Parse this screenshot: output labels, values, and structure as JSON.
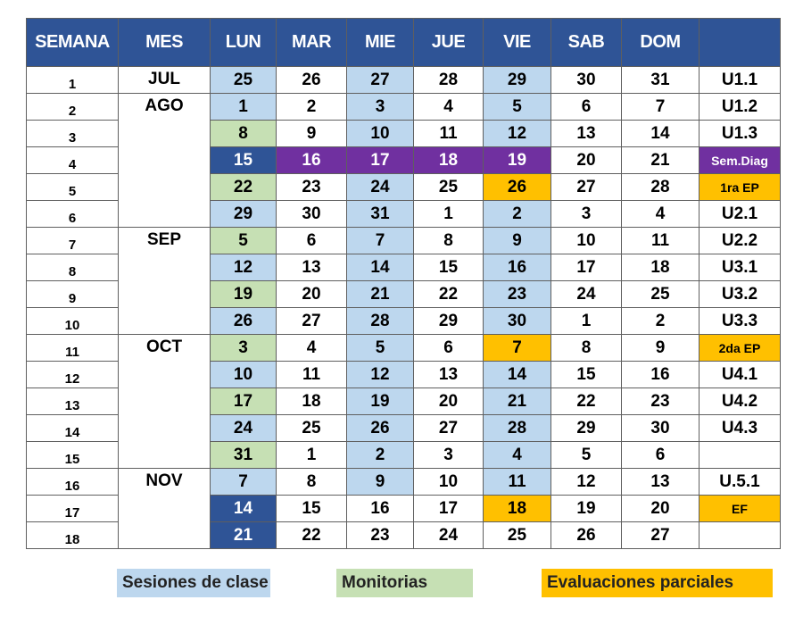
{
  "headers": [
    "SEMANA",
    "MES",
    "LUN",
    "MAR",
    "MIE",
    "JUE",
    "VIE",
    "SAB",
    "DOM",
    ""
  ],
  "colors": {
    "header": "#2f5496",
    "clase": "#bdd7ee",
    "monitoria": "#c6e0b4",
    "dark": "#2f5496",
    "purple": "#7030a0",
    "evaluacion": "#ffc000"
  },
  "months": [
    {
      "label": "JUL",
      "start": 0,
      "span": 1
    },
    {
      "label": "AGO",
      "start": 1,
      "span": 5
    },
    {
      "label": "SEP",
      "start": 6,
      "span": 4
    },
    {
      "label": "OCT",
      "start": 10,
      "span": 5
    },
    {
      "label": "NOV",
      "start": 15,
      "span": 3
    }
  ],
  "rows": [
    {
      "week": "1",
      "days": [
        "25",
        "26",
        "27",
        "28",
        "29",
        "30",
        "31"
      ],
      "styles": [
        "blue",
        "",
        "blue",
        "",
        "blue",
        "",
        ""
      ],
      "unit": "U1.1",
      "unit_style": ""
    },
    {
      "week": "2",
      "days": [
        "1",
        "2",
        "3",
        "4",
        "5",
        "6",
        "7"
      ],
      "styles": [
        "blue",
        "",
        "blue",
        "",
        "blue",
        "",
        ""
      ],
      "unit": "U1.2",
      "unit_style": ""
    },
    {
      "week": "3",
      "days": [
        "8",
        "9",
        "10",
        "11",
        "12",
        "13",
        "14"
      ],
      "styles": [
        "green",
        "",
        "blue",
        "",
        "blue",
        "",
        ""
      ],
      "unit": "U1.3",
      "unit_style": ""
    },
    {
      "week": "4",
      "days": [
        "15",
        "16",
        "17",
        "18",
        "19",
        "20",
        "21"
      ],
      "styles": [
        "dark",
        "purple",
        "purple",
        "purple",
        "purple",
        "",
        ""
      ],
      "unit": "Sem.Diag",
      "unit_style": "purple small"
    },
    {
      "week": "5",
      "days": [
        "22",
        "23",
        "24",
        "25",
        "26",
        "27",
        "28"
      ],
      "styles": [
        "green",
        "",
        "blue",
        "",
        "orange",
        "",
        ""
      ],
      "unit": "1ra EP",
      "unit_style": "orange small"
    },
    {
      "week": "6",
      "days": [
        "29",
        "30",
        "31",
        "1",
        "2",
        "3",
        "4"
      ],
      "styles": [
        "blue",
        "",
        "blue",
        "",
        "blue",
        "",
        ""
      ],
      "unit": "U2.1",
      "unit_style": ""
    },
    {
      "week": "7",
      "days": [
        "5",
        "6",
        "7",
        "8",
        "9",
        "10",
        "11"
      ],
      "styles": [
        "green",
        "",
        "blue",
        "",
        "blue",
        "",
        ""
      ],
      "unit": "U2.2",
      "unit_style": ""
    },
    {
      "week": "8",
      "days": [
        "12",
        "13",
        "14",
        "15",
        "16",
        "17",
        "18"
      ],
      "styles": [
        "blue",
        "",
        "blue",
        "",
        "blue",
        "",
        ""
      ],
      "unit": "U3.1",
      "unit_style": ""
    },
    {
      "week": "9",
      "days": [
        "19",
        "20",
        "21",
        "22",
        "23",
        "24",
        "25"
      ],
      "styles": [
        "green",
        "",
        "blue",
        "",
        "blue",
        "",
        ""
      ],
      "unit": "U3.2",
      "unit_style": ""
    },
    {
      "week": "10",
      "days": [
        "26",
        "27",
        "28",
        "29",
        "30",
        "1",
        "2"
      ],
      "styles": [
        "blue",
        "",
        "blue",
        "",
        "blue",
        "",
        ""
      ],
      "unit": "U3.3",
      "unit_style": ""
    },
    {
      "week": "11",
      "days": [
        "3",
        "4",
        "5",
        "6",
        "7",
        "8",
        "9"
      ],
      "styles": [
        "green",
        "",
        "blue",
        "",
        "orange",
        "",
        ""
      ],
      "unit": "2da EP",
      "unit_style": "orange small"
    },
    {
      "week": "12",
      "days": [
        "10",
        "11",
        "12",
        "13",
        "14",
        "15",
        "16"
      ],
      "styles": [
        "blue",
        "",
        "blue",
        "",
        "blue",
        "",
        ""
      ],
      "unit": "U4.1",
      "unit_style": ""
    },
    {
      "week": "13",
      "days": [
        "17",
        "18",
        "19",
        "20",
        "21",
        "22",
        "23"
      ],
      "styles": [
        "green",
        "",
        "blue",
        "",
        "blue",
        "",
        ""
      ],
      "unit": "U4.2",
      "unit_style": ""
    },
    {
      "week": "14",
      "days": [
        "24",
        "25",
        "26",
        "27",
        "28",
        "29",
        "30"
      ],
      "styles": [
        "blue",
        "",
        "blue",
        "",
        "blue",
        "",
        ""
      ],
      "unit": "U4.3",
      "unit_style": ""
    },
    {
      "week": "15",
      "days": [
        "31",
        "1",
        "2",
        "3",
        "4",
        "5",
        "6"
      ],
      "styles": [
        "green",
        "",
        "blue",
        "",
        "blue",
        "",
        ""
      ],
      "unit": "",
      "unit_style": ""
    },
    {
      "week": "16",
      "days": [
        "7",
        "8",
        "9",
        "10",
        "11",
        "12",
        "13"
      ],
      "styles": [
        "blue",
        "",
        "blue",
        "",
        "blue",
        "",
        ""
      ],
      "unit": "U.5.1",
      "unit_style": ""
    },
    {
      "week": "17",
      "days": [
        "14",
        "15",
        "16",
        "17",
        "18",
        "19",
        "20"
      ],
      "styles": [
        "dark",
        "",
        "",
        "",
        "orange",
        "",
        ""
      ],
      "unit": "EF",
      "unit_style": "orange small"
    },
    {
      "week": "18",
      "days": [
        "21",
        "22",
        "23",
        "24",
        "25",
        "26",
        "27"
      ],
      "styles": [
        "dark",
        "",
        "",
        "",
        "",
        "",
        ""
      ],
      "unit": "",
      "unit_style": ""
    }
  ],
  "legend": [
    {
      "label": "Sesiones de clase",
      "color": "#bdd7ee"
    },
    {
      "label": "Monitorias",
      "color": "#c6e0b4"
    },
    {
      "label": "Evaluaciones parciales",
      "color": "#ffc000"
    }
  ]
}
